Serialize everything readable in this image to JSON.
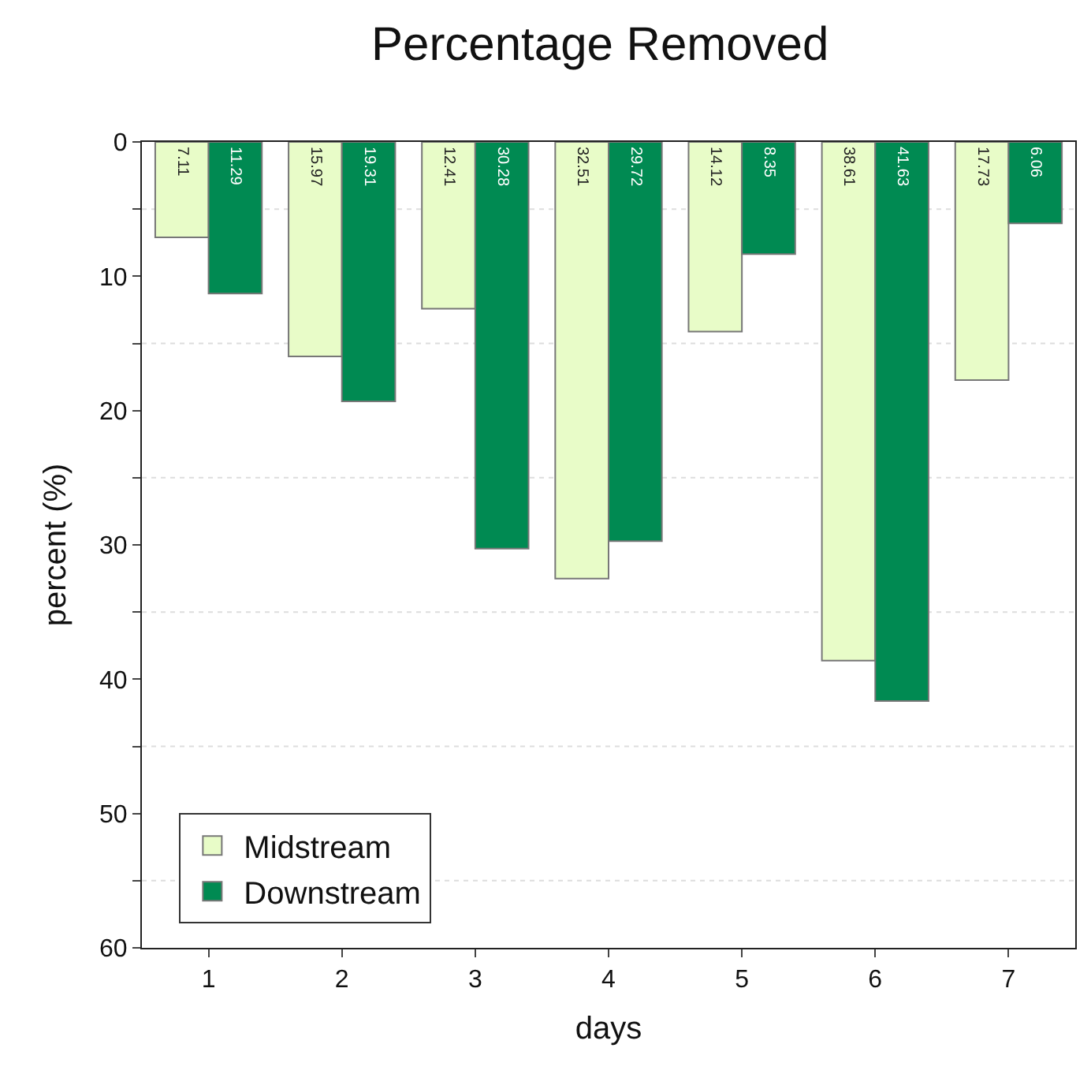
{
  "chart_data": {
    "type": "bar",
    "title": "Percentage Removed",
    "xlabel": "days",
    "ylabel": "percent (%)",
    "categories": [
      "1",
      "2",
      "3",
      "4",
      "5",
      "6",
      "7"
    ],
    "series": [
      {
        "name": "Midstream",
        "color": "#e8fcc8",
        "values": [
          7.11,
          15.97,
          12.41,
          32.51,
          14.12,
          38.61,
          17.73
        ]
      },
      {
        "name": "Downstream",
        "color": "#008a52",
        "values": [
          11.29,
          19.31,
          30.28,
          29.72,
          8.35,
          41.63,
          6.06
        ]
      }
    ],
    "ylim": [
      60,
      0
    ],
    "yticks": [
      0,
      {
        "value": 5,
        "label": null
      },
      10,
      {
        "value": 15,
        "label": null
      },
      20,
      {
        "value": 25,
        "label": null
      },
      30,
      {
        "value": 35,
        "label": null
      },
      40,
      {
        "value": 45,
        "label": null
      },
      50,
      {
        "value": 55,
        "label": null
      },
      60
    ],
    "grid": "y",
    "legend": "bottom left",
    "data_labels": true
  }
}
